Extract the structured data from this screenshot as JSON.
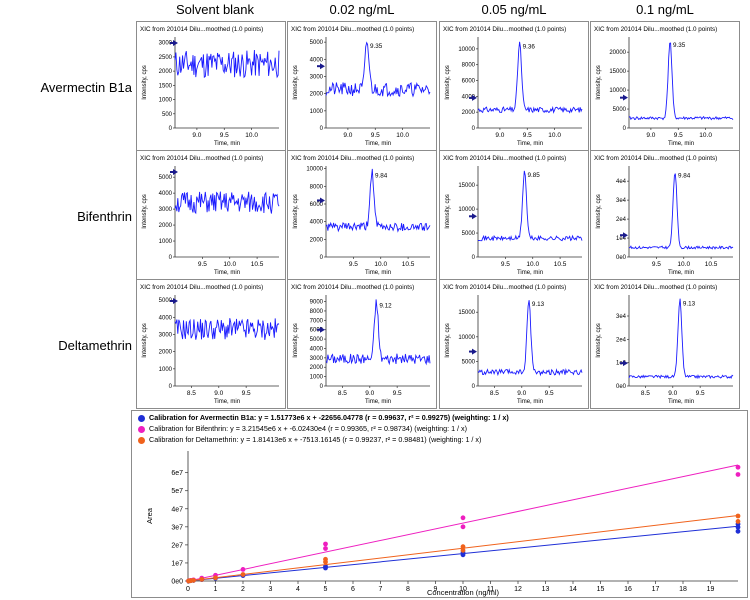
{
  "column_headers": [
    "Solvent  blank",
    "0.02 ng/mL",
    "0.05 ng/mL",
    "0.1 ng/mL"
  ],
  "row_labels": [
    "Avermectin B1a",
    "Bifenthrin",
    "Deltamethrin"
  ],
  "xic_title": "XIC from 201014 Dilu...moothed (1.0 points)",
  "xic_xlabel": "Time, min",
  "xic_ylabel": "Intensity, cps",
  "colors": {
    "trace": "#1a1aff",
    "marker": "#1a1a8c",
    "frame": "#8c8c8c",
    "axis": "#333333"
  },
  "chart_data": [
    {
      "type": "line",
      "row": 0,
      "col": 0,
      "xlim": [
        8.6,
        10.5
      ],
      "ylim": [
        0,
        3200
      ],
      "xticks": [
        9.0,
        9.5,
        10.0
      ],
      "yticks": [
        0,
        500,
        1000,
        1500,
        2000,
        2500,
        3000
      ],
      "ytick_labels": [
        "0",
        "500",
        "1000",
        "1500",
        "2000",
        "2500",
        "3000"
      ],
      "noise": {
        "base": 2250,
        "amp": 500,
        "seed": 11
      },
      "peak": null
    },
    {
      "type": "line",
      "row": 0,
      "col": 1,
      "xlim": [
        8.6,
        10.5
      ],
      "ylim": [
        0,
        5300
      ],
      "xticks": [
        9.0,
        9.5,
        10.0
      ],
      "yticks": [
        0,
        1000,
        2000,
        3000,
        4000,
        5000
      ],
      "ytick_labels": [
        "0",
        "1000",
        "2000",
        "3000",
        "4000",
        "5000"
      ],
      "noise": {
        "base": 2250,
        "amp": 400,
        "seed": 21
      },
      "peak": {
        "x": 9.35,
        "height": 5000,
        "width": 0.035,
        "label": "9.35"
      },
      "marker_y": 3600
    },
    {
      "type": "line",
      "row": 0,
      "col": 2,
      "xlim": [
        8.6,
        10.5
      ],
      "ylim": [
        0,
        11500
      ],
      "xticks": [
        9.0,
        9.5,
        10.0
      ],
      "yticks": [
        0,
        2000,
        4000,
        6000,
        8000,
        10000
      ],
      "ytick_labels": [
        "0",
        "2000",
        "4000",
        "6000",
        "8000",
        "10000"
      ],
      "noise": {
        "base": 2300,
        "amp": 350,
        "seed": 31
      },
      "peak": {
        "x": 9.36,
        "height": 10800,
        "width": 0.035,
        "label": "9.36"
      },
      "marker_y": 3800
    },
    {
      "type": "line",
      "row": 0,
      "col": 3,
      "xlim": [
        8.6,
        10.5
      ],
      "ylim": [
        0,
        24000
      ],
      "xticks": [
        9.0,
        9.5,
        10.0
      ],
      "yticks": [
        0,
        5000,
        10000,
        15000,
        20000
      ],
      "ytick_labels": [
        "0",
        "5000",
        "10000",
        "15000",
        "20000"
      ],
      "noise": {
        "base": 2600,
        "amp": 400,
        "seed": 41
      },
      "peak": {
        "x": 9.35,
        "height": 23000,
        "width": 0.035,
        "label": "9.35"
      },
      "marker_y": 8000
    },
    {
      "type": "line",
      "row": 1,
      "col": 0,
      "xlim": [
        9.0,
        10.9
      ],
      "ylim": [
        0,
        5700
      ],
      "xticks": [
        9.5,
        10.0,
        10.5
      ],
      "yticks": [
        0,
        1000,
        2000,
        3000,
        4000,
        5000
      ],
      "ytick_labels": [
        "0",
        "1000",
        "2000",
        "3000",
        "4000",
        "5000"
      ],
      "noise": {
        "base": 3400,
        "amp": 700,
        "seed": 51
      },
      "peak": null
    },
    {
      "type": "line",
      "row": 1,
      "col": 1,
      "xlim": [
        9.0,
        10.9
      ],
      "ylim": [
        0,
        10300
      ],
      "xticks": [
        9.5,
        10.0,
        10.5
      ],
      "yticks": [
        0,
        2000,
        4000,
        6000,
        8000,
        10000
      ],
      "ytick_labels": [
        "0",
        "2000",
        "4000",
        "6000",
        "8000",
        "10000"
      ],
      "noise": {
        "base": 3400,
        "amp": 500,
        "seed": 61
      },
      "peak": {
        "x": 9.84,
        "height": 9700,
        "width": 0.035,
        "label": "9.84"
      },
      "marker_y": 6400
    },
    {
      "type": "line",
      "row": 1,
      "col": 2,
      "xlim": [
        9.0,
        10.9
      ],
      "ylim": [
        0,
        19000
      ],
      "xticks": [
        9.5,
        10.0,
        10.5
      ],
      "yticks": [
        0,
        5000,
        10000,
        15000
      ],
      "ytick_labels": [
        "0",
        "5000",
        "10000",
        "15000"
      ],
      "noise": {
        "base": 3900,
        "amp": 500,
        "seed": 71
      },
      "peak": {
        "x": 9.85,
        "height": 18000,
        "width": 0.035,
        "label": "9.85"
      },
      "marker_y": 8500
    },
    {
      "type": "line",
      "row": 1,
      "col": 3,
      "xlim": [
        9.0,
        10.9
      ],
      "ylim": [
        0,
        48000
      ],
      "xticks": [
        9.5,
        10.0,
        10.5
      ],
      "yticks": [
        0,
        10000,
        20000,
        30000,
        40000
      ],
      "ytick_labels": [
        "0e0",
        "1e4",
        "2e4",
        "3e4",
        "4e4"
      ],
      "noise": {
        "base": 5000,
        "amp": 700,
        "seed": 81
      },
      "peak": {
        "x": 9.84,
        "height": 45000,
        "width": 0.035,
        "label": "9.84"
      },
      "marker_y": 11500
    },
    {
      "type": "line",
      "row": 2,
      "col": 0,
      "xlim": [
        8.2,
        10.1
      ],
      "ylim": [
        0,
        5300
      ],
      "xticks": [
        8.5,
        9.0,
        9.5
      ],
      "yticks": [
        0,
        1000,
        2000,
        3000,
        4000,
        5000
      ],
      "ytick_labels": [
        "0",
        "1000",
        "2000",
        "3000",
        "4000",
        "5000"
      ],
      "noise": {
        "base": 3300,
        "amp": 650,
        "seed": 91
      },
      "peak": null
    },
    {
      "type": "line",
      "row": 2,
      "col": 1,
      "xlim": [
        8.2,
        10.1
      ],
      "ylim": [
        0,
        9700
      ],
      "xticks": [
        8.5,
        9.0,
        9.5
      ],
      "yticks": [
        0,
        1000,
        2000,
        3000,
        4000,
        5000,
        6000,
        7000,
        8000,
        9000
      ],
      "ytick_labels": [
        "0",
        "1000",
        "2000",
        "3000",
        "4000",
        "5000",
        "6000",
        "7000",
        "8000",
        "9000"
      ],
      "noise": {
        "base": 2900,
        "amp": 550,
        "seed": 101
      },
      "peak": {
        "x": 9.12,
        "height": 9000,
        "width": 0.035,
        "label": "9.12"
      },
      "marker_y": 6000
    },
    {
      "type": "line",
      "row": 2,
      "col": 2,
      "xlim": [
        8.2,
        10.1
      ],
      "ylim": [
        0,
        18500
      ],
      "xticks": [
        8.5,
        9.0,
        9.5
      ],
      "yticks": [
        0,
        5000,
        10000,
        15000
      ],
      "ytick_labels": [
        "0",
        "5000",
        "10000",
        "15000"
      ],
      "noise": {
        "base": 2800,
        "amp": 550,
        "seed": 111
      },
      "peak": {
        "x": 9.13,
        "height": 17500,
        "width": 0.035,
        "label": "9.13"
      },
      "marker_y": 7000
    },
    {
      "type": "line",
      "row": 2,
      "col": 3,
      "xlim": [
        8.2,
        10.1
      ],
      "ylim": [
        0,
        39000
      ],
      "xticks": [
        8.5,
        9.0,
        9.5
      ],
      "yticks": [
        0,
        10000,
        20000,
        30000
      ],
      "ytick_labels": [
        "0e0",
        "1e4",
        "2e4",
        "3e4"
      ],
      "noise": {
        "base": 4000,
        "amp": 600,
        "seed": 121
      },
      "peak": {
        "x": 9.13,
        "height": 37000,
        "width": 0.035,
        "label": "9.13"
      },
      "marker_y": 9800
    },
    {
      "type": "scatter",
      "xlabel": "Concentration (ng/ml)",
      "ylabel": "Area",
      "xlim": [
        0,
        20
      ],
      "ylim": [
        0,
        72000000
      ],
      "xticks": [
        0,
        1,
        2,
        3,
        4,
        5,
        6,
        7,
        8,
        9,
        10,
        11,
        12,
        13,
        14,
        15,
        16,
        17,
        18,
        19
      ],
      "yticks": [
        0,
        10000000,
        20000000,
        30000000,
        40000000,
        50000000,
        60000000
      ],
      "ytick_labels": [
        "0e0",
        "1e7",
        "2e7",
        "3e7",
        "4e7",
        "5e7",
        "6e7"
      ],
      "series": [
        {
          "name": "Calibration for Avermectin B1a:  y = 1.51773e6 x + -22656.04778 (r = 0.99637, r² = 0.99275)  (weighting: 1 / x)",
          "color": "#1f2fd6",
          "slope": 1517730,
          "intercept": -22656.04778,
          "bold": true,
          "points": [
            [
              0.02,
              30000
            ],
            [
              0.05,
              75000
            ],
            [
              0.1,
              150000
            ],
            [
              0.2,
              300000
            ],
            [
              0.5,
              760000
            ],
            [
              1,
              1500000
            ],
            [
              2,
              3000000
            ],
            [
              5,
              7200000
            ],
            [
              5,
              8100000
            ],
            [
              10,
              14500000
            ],
            [
              10,
              15800000
            ],
            [
              20,
              27500000
            ],
            [
              20,
              29800000
            ],
            [
              20,
              31500000
            ]
          ]
        },
        {
          "name": "Calibration for Bifenthrin:  y = 3.21545e6 x + -6.02430e4  (r = 0.99365, r² = 0.98734)  (weighting: 1 / x)",
          "color": "#ee1fc0",
          "slope": 3215450,
          "intercept": -60243,
          "bold": false,
          "points": [
            [
              0.02,
              60000
            ],
            [
              0.05,
              160000
            ],
            [
              0.1,
              320000
            ],
            [
              0.2,
              640000
            ],
            [
              0.5,
              1600000
            ],
            [
              1,
              3200000
            ],
            [
              2,
              6400000
            ],
            [
              5,
              18000000
            ],
            [
              5,
              20500000
            ],
            [
              10,
              30000000
            ],
            [
              10,
              35000000
            ],
            [
              20,
              59000000
            ],
            [
              20,
              63000000
            ]
          ]
        },
        {
          "name": "Calibration for Deltamethrin:  y = 1.81413e6 x + -7513.16145  (r = 0.99237, r² = 0.98481)  (weighting: 1 / x)",
          "color": "#f0621c",
          "slope": 1814130,
          "intercept": -7513.16145,
          "bold": false,
          "points": [
            [
              0.02,
              36000
            ],
            [
              0.05,
              90000
            ],
            [
              0.1,
              180000
            ],
            [
              0.2,
              360000
            ],
            [
              0.5,
              900000
            ],
            [
              1,
              1800000
            ],
            [
              2,
              3600000
            ],
            [
              5,
              10500000
            ],
            [
              5,
              12000000
            ],
            [
              10,
              17000000
            ],
            [
              10,
              19000000
            ],
            [
              20,
              33000000
            ],
            [
              20,
              36000000
            ]
          ]
        }
      ]
    }
  ]
}
